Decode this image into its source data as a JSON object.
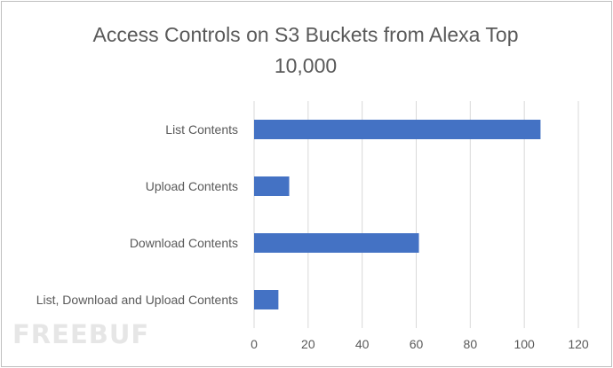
{
  "chart_data": {
    "type": "bar",
    "orientation": "horizontal",
    "title_lines": [
      "Access Controls on S3 Buckets from Alexa Top",
      "10,000"
    ],
    "categories": [
      "List Contents",
      "Upload Contents",
      "Download Contents",
      "List, Download and Upload Contents"
    ],
    "values": [
      106,
      13,
      61,
      9
    ],
    "xlim": [
      0,
      120
    ],
    "xticks": [
      0,
      20,
      40,
      60,
      80,
      100,
      120
    ],
    "grid": "vertical",
    "legend": "none",
    "bar_color": "#4472c4"
  },
  "watermark": "FREEBUF"
}
